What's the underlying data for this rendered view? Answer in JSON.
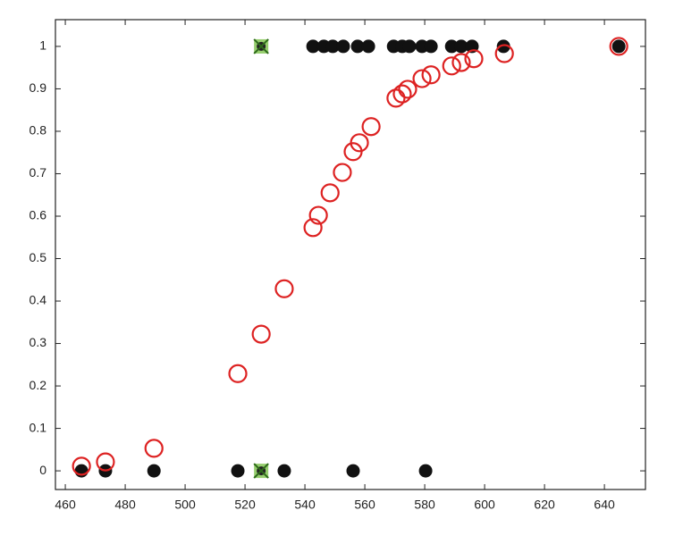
{
  "chart_data": {
    "type": "scatter",
    "xlim": [
      456.7,
      653.7
    ],
    "ylim": [
      -0.044,
      1.063
    ],
    "xticks": [
      460,
      480,
      500,
      520,
      540,
      560,
      580,
      600,
      620,
      640
    ],
    "yticks": [
      0,
      0.1,
      0.2,
      0.3,
      0.4,
      0.5,
      0.6,
      0.7,
      0.8,
      0.9,
      1
    ],
    "series": [
      {
        "color": "#111111",
        "marker": "filled",
        "x": [
          465.4,
          473.4,
          489.6,
          517.6,
          533.1,
          556.1,
          580.3,
          542.7,
          546.3,
          549.3,
          552.8,
          557.6,
          561.2,
          569.6,
          572.5,
          574.9,
          579.1,
          582.1,
          589,
          592.2,
          595.8,
          606.3,
          644.8
        ],
        "values": [
          0,
          0,
          0,
          0,
          0,
          0,
          0,
          1,
          1,
          1,
          1,
          1,
          1,
          1,
          1,
          1,
          1,
          1,
          1,
          1,
          1,
          1,
          1
        ]
      },
      {
        "color": "#dd2222",
        "marker": "open",
        "x": [
          465.4,
          473.4,
          489.6,
          517.6,
          525.4,
          533.1,
          542.7,
          544.5,
          548.4,
          552.5,
          556.1,
          558.2,
          562.1,
          570.4,
          572.5,
          574.3,
          579.1,
          582.1,
          589,
          592.2,
          596.4,
          606.6,
          644.8
        ],
        "values": [
          0.011,
          0.021,
          0.053,
          0.229,
          0.322,
          0.429,
          0.573,
          0.602,
          0.655,
          0.703,
          0.752,
          0.773,
          0.811,
          0.878,
          0.888,
          0.899,
          0.924,
          0.933,
          0.954,
          0.962,
          0.971,
          0.983,
          1.0
        ]
      },
      {
        "color": "#7cc24a",
        "marker": "cross",
        "x": [
          525.4,
          525.4
        ],
        "values": [
          0,
          1
        ]
      }
    ]
  }
}
